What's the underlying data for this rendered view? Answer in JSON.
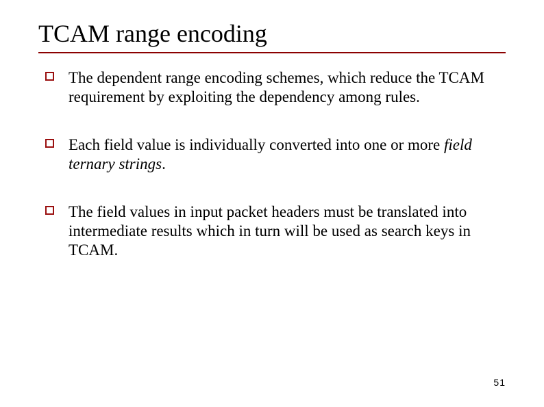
{
  "title": "TCAM range encoding",
  "rule_color": "#8b0000",
  "bullet_border_color": "#9a0f0f",
  "bullets": [
    {
      "pre": "The dependent range encoding schemes, which reduce the TCAM requirement by exploiting the dependency among rules.",
      "italic": "",
      "post": ""
    },
    {
      "pre": "Each field value is individually converted into one or more ",
      "italic": "field ternary strings",
      "post": "."
    },
    {
      "pre": "The field values in input packet headers must be translated into intermediate results which in turn will be used as search keys in TCAM.",
      "italic": "",
      "post": ""
    }
  ],
  "page_number": "51"
}
